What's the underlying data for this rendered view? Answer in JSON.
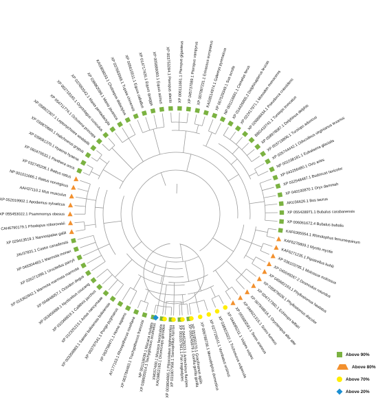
{
  "categories": {
    "s": {
      "label": "Above 90%",
      "color": "#7bb241",
      "shape": "square"
    },
    "t": {
      "label": "Above 80%",
      "color": "#f2902e",
      "shape": "triangle"
    },
    "c": {
      "label": "Above 70%",
      "color": "#ffed00",
      "shape": "circle"
    },
    "d": {
      "label": "Above 20%",
      "color": "#1b8fd2",
      "shape": "diamond"
    }
  },
  "legend": [
    "s",
    "t",
    "c",
    "d"
  ],
  "taxa": [
    {
      "label": "XP 055245879.1 Gorilla gorilla gorilla",
      "cat": "s"
    },
    {
      "label": "XP 001037941.1 Pan troglodytes",
      "cat": "s"
    },
    {
      "label": "XP 003804865.1 Piliocolobus tephrosceles",
      "cat": "s"
    },
    {
      "label": "XM057460.1 Macaca fascicularis",
      "cat": "s"
    },
    {
      "label": "NP 001118639.1 Macaca mulatta",
      "cat": "s"
    },
    {
      "label": "XP 003784483.1 Trachypithecus francoisi",
      "cat": "s"
    },
    {
      "label": "AY177163.1 Rhinopithecus roxellana",
      "cat": "s"
    },
    {
      "label": "XP 003798471.1 Homo sapiens",
      "cat": "s"
    },
    {
      "label": "XP 003797541.1 Pongo pygmaeus",
      "cat": "s"
    },
    {
      "label": "XP 003358983.1 Saimiri boliviensis boliviensis",
      "cat": "s"
    },
    {
      "label": "XP 012325213.1 Aotus nancymaae",
      "cat": "s"
    },
    {
      "label": "XP 010366819.1 Callithrix jacchus",
      "cat": "s"
    },
    {
      "label": "XP 053456689.1 Nycticebus coucang",
      "cat": "s"
    },
    {
      "label": "XP 004848057.1 Octodon degus",
      "cat": "s"
    },
    {
      "label": "XP 015362942.1 Marmota marmota marmota",
      "cat": "s"
    },
    {
      "label": "XP 026271099.1 Urocitellus parryii",
      "cat": "s"
    },
    {
      "label": "XP 046304483.1 Marmota monax",
      "cat": "s"
    },
    {
      "label": "JAV37831.1 Castor canadensis",
      "cat": "s"
    },
    {
      "label": "XP 029413519.1 Nannospalax galili",
      "cat": "t"
    },
    {
      "label": "CAH6790179.1 Phodopus roborovskii",
      "cat": "t"
    },
    {
      "label": "XP 055453022.1 Psammomys obesus",
      "cat": "t"
    },
    {
      "label": "XP 052019902.1 Apodemus sylvaticus",
      "cat": "t"
    },
    {
      "label": "AAH37110.1 Mus musculus",
      "cat": "t"
    },
    {
      "label": "NP 001011665.1 Rattus norvegicus",
      "cat": "t"
    },
    {
      "label": "XP 032745206.1 Rattus rattus",
      "cat": "t"
    },
    {
      "label": "XP 060470533.1 Panthera onca",
      "cat": "s"
    },
    {
      "label": "XP 039081370.1 Hyaena hyaena",
      "cat": "s"
    },
    {
      "label": "XP 039870660.1 Halichoerus grypus",
      "cat": "s"
    },
    {
      "label": "XP 058922307.1 Leptonychotes weddellii",
      "cat": "s"
    },
    {
      "label": "XP 054711774.1 Ochotona princeps",
      "cat": "s"
    },
    {
      "label": "XP 002718165.1 Oryctolagus cuniculus",
      "cat": "s"
    },
    {
      "label": "XP 037683542.1 Manis pentadactyla",
      "cat": "s"
    },
    {
      "label": "XP 036862099.1 Manis javanica",
      "cat": "s"
    },
    {
      "label": "KAI5908033.1 Choloepus didactylus",
      "cat": "s"
    },
    {
      "label": "XP 037683568.1 Tupaia chinensis",
      "cat": "s"
    },
    {
      "label": "XP 005615511.1 Equus caballus",
      "cat": "s"
    },
    {
      "label": "XP 014717426.1 Equus quagga",
      "cat": "s"
    },
    {
      "label": "XP 005689093.1 Equus asinus",
      "cat": "s"
    },
    {
      "label": "XP 003753284.1 Pteropus alecto",
      "cat": "s"
    },
    {
      "label": "XP 006111661.1 Pteropus giganteus",
      "cat": "s"
    },
    {
      "label": "XP 045737089.1 Pteropus vampyrus",
      "cat": "s"
    },
    {
      "label": "XP 007097231.1 Erinaceus europaeus",
      "cat": "s"
    },
    {
      "label": "KAG8514974.1 Galemys pyrenaicus",
      "cat": "s"
    },
    {
      "label": "XP 007529349.1 Sus scrofa",
      "cat": "s"
    },
    {
      "label": "NP 001116681.1 Camelus ferus",
      "cat": "s"
    },
    {
      "label": "XP 014426805.2 Delphinapterus leucas",
      "cat": "s"
    },
    {
      "label": "XP 022417971.1 Monodon monoceros",
      "cat": "s"
    },
    {
      "label": "XP 026898434.1 Pseudorca crassidens",
      "cat": "s"
    },
    {
      "label": "BBG410741.1 Tursiops truncatus",
      "cat": "s"
    },
    {
      "label": "XP 058979087.1 Delphinus delphis",
      "cat": "s"
    },
    {
      "label": "XP 003719806.1 Tursiops aduncus",
      "cat": "s"
    },
    {
      "label": "XP 026744442.1 Odocoileus virginianus texanus",
      "cat": "s"
    },
    {
      "label": "NP 001036181.1 Eubalaena glacialis",
      "cat": "s"
    },
    {
      "label": "XP 043256480.1 Ovis aries",
      "cat": "s"
    },
    {
      "label": "XP 032548487.1 Budorcas taxicolor",
      "cat": "s"
    },
    {
      "label": "XP 040100870.1 Oryx dammah",
      "cat": "s"
    },
    {
      "label": "AKU36626.1 Bos taurus",
      "cat": "s"
    },
    {
      "label": "XP 055428971.1 Bubalus carabanensis",
      "cat": "s"
    },
    {
      "label": "XP 006061672.4 Bubalus bubalis",
      "cat": "s"
    },
    {
      "label": "KAF6365554.1 Rhinolophus ferrumequinum",
      "cat": "s"
    },
    {
      "label": "KAF6276809.1 Myotis myotis",
      "cat": "t"
    },
    {
      "label": "KAF6271235.1 Pipistrellus kuhlii",
      "cat": "t"
    },
    {
      "label": "XP 036103795.1 Molossus molossus",
      "cat": "t"
    },
    {
      "label": "XP 045049267.2 Desmodus rotundus",
      "cat": "t"
    },
    {
      "label": "XP 045682163.1 Phyllostomus hastatus",
      "cat": "t"
    },
    {
      "label": "XP 035879628.1 Phyllostomus discolor",
      "cat": "t"
    },
    {
      "label": "XP 004717360.1 Echinops telfairi",
      "cat": "t"
    },
    {
      "label": "XP 007949616.1 Orycteropus afer afer",
      "cat": "t"
    },
    {
      "label": "XP 049921315.1 Sorex fumeus",
      "cat": "t"
    },
    {
      "label": "XP 055883591.1 Sorex araneus",
      "cat": "t"
    },
    {
      "label": "XP 044085211.1 Vulpes vulpes",
      "cat": "c"
    },
    {
      "label": "XP 036923322.1 Trichosurus vulpecula",
      "cat": "c"
    },
    {
      "label": "XP 027729241.1 Vombatus ursinus",
      "cat": "c"
    },
    {
      "label": "XP 006788736.1 Monodelphis domestica",
      "cat": "c"
    },
    {
      "label": "XP 051850370.1 Gracilinanus agilis",
      "cat": "c"
    },
    {
      "label": "XP 044525023.1 Antechinus flavipes",
      "cat": "c"
    },
    {
      "label": "XP 031807958.1 Sarcophilus harrisii",
      "cat": "c"
    },
    {
      "label": "KAG9802163.1 Dromiciops gliroides",
      "cat": "c"
    },
    {
      "label": "XP 038605014.1 Tachyglossus aculeatus",
      "cat": "d"
    }
  ]
}
